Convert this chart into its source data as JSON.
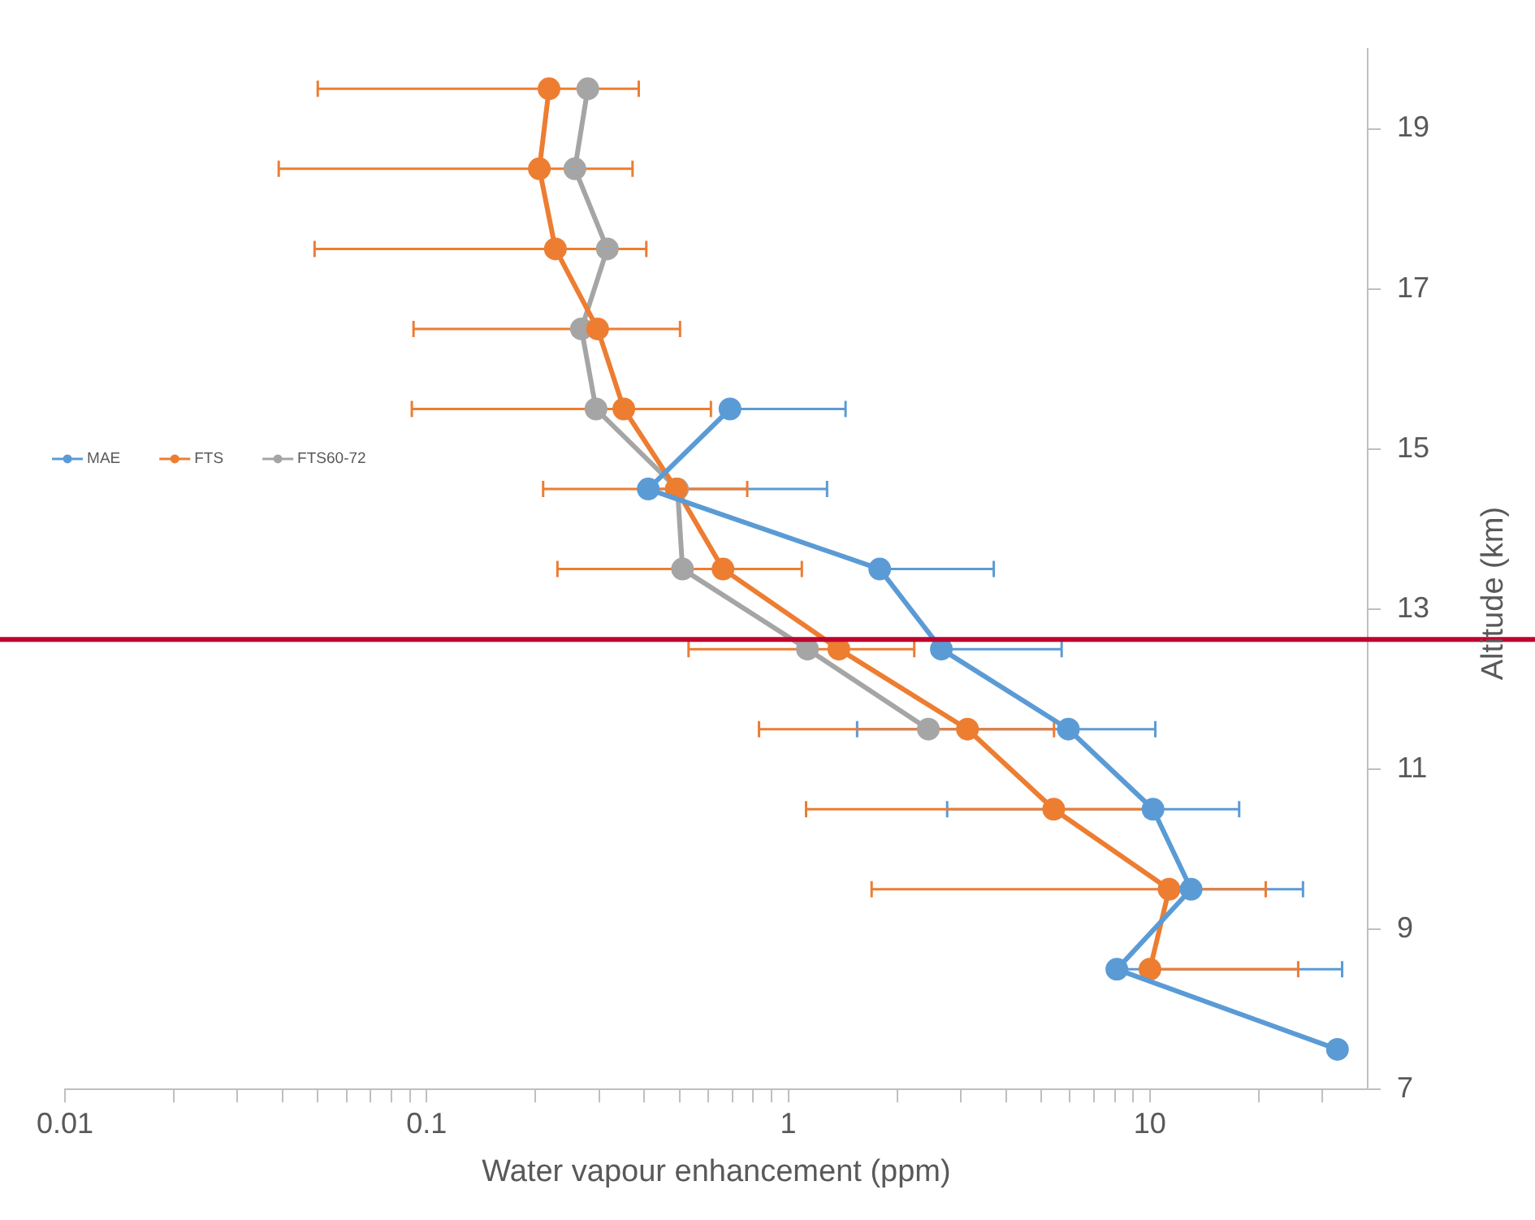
{
  "chart_data": {
    "type": "line",
    "xlabel": "Water vapour enhancement (ppm)",
    "ylabel": "Altitude (km)",
    "log": "x",
    "grid": false,
    "legend": "left",
    "marker": "circle",
    "xlim": [
      0.01,
      40
    ],
    "xticks": [
      0.01,
      {
        "value": 0.02,
        "label": null
      },
      {
        "value": 0.03,
        "label": null
      },
      {
        "value": 0.04,
        "label": null
      },
      {
        "value": 0.05,
        "label": null
      },
      {
        "value": 0.06,
        "label": null
      },
      {
        "value": 0.07,
        "label": null
      },
      {
        "value": 0.08,
        "label": null
      },
      {
        "value": 0.09,
        "label": null
      },
      0.1,
      {
        "value": 0.2,
        "label": null
      },
      {
        "value": 0.3,
        "label": null
      },
      {
        "value": 0.4,
        "label": null
      },
      {
        "value": 0.5,
        "label": null
      },
      {
        "value": 0.6,
        "label": null
      },
      {
        "value": 0.7,
        "label": null
      },
      {
        "value": 0.8,
        "label": null
      },
      {
        "value": 0.9,
        "label": null
      },
      1,
      {
        "value": 2,
        "label": null
      },
      {
        "value": 3,
        "label": null
      },
      {
        "value": 4,
        "label": null
      },
      {
        "value": 5,
        "label": null
      },
      {
        "value": 6,
        "label": null
      },
      {
        "value": 7,
        "label": null
      },
      {
        "value": 8,
        "label": null
      },
      {
        "value": 9,
        "label": null
      },
      10,
      {
        "value": 20,
        "label": null
      },
      {
        "value": 30,
        "label": null
      }
    ],
    "ylim": [
      7,
      20
    ],
    "yticks": [
      7,
      9,
      11,
      13,
      15,
      17,
      19
    ],
    "ref_lines": [
      {
        "axis": "y",
        "value": 12.62,
        "color": "#c0002f"
      }
    ],
    "series": [
      {
        "name": "MAE",
        "color": "#5b9bd5",
        "x": [
          33,
          8.1,
          13.0,
          10.2,
          5.95,
          2.65,
          1.79,
          0.41,
          0.69
        ],
        "values": [
          7.5,
          8.5,
          9.5,
          10.5,
          11.5,
          12.5,
          13.5,
          14.5,
          15.5
        ],
        "xerrors": [
          null,
          [
            8.1,
            34
          ],
          [
            13.0,
            26.5
          ],
          7.45,
          4.4,
          [
            2.65,
            5.7
          ],
          [
            1.79,
            3.7
          ],
          [
            0.41,
            1.28
          ],
          [
            0.69,
            1.44
          ]
        ]
      },
      {
        "name": "FTS",
        "color": "#ed7d31",
        "x": [
          10.0,
          11.3,
          5.42,
          3.13,
          1.38,
          0.66,
          0.49,
          0.351,
          0.297,
          0.227,
          0.205,
          0.218
        ],
        "values": [
          8.5,
          9.5,
          10.5,
          11.5,
          12.5,
          13.5,
          14.5,
          15.5,
          16.5,
          17.5,
          18.5,
          19.5
        ],
        "xerrors": [
          [
            10.0,
            25.7
          ],
          9.6,
          4.3,
          2.3,
          0.85,
          0.43,
          0.28,
          0.26,
          0.205,
          0.178,
          0.166,
          0.168
        ]
      },
      {
        "name": "FTS60-72",
        "color": "#a5a5a5",
        "x": [
          2.44,
          1.13,
          0.51,
          0.494,
          0.294,
          0.268,
          0.316,
          0.257,
          0.279
        ],
        "values": [
          11.5,
          12.5,
          13.5,
          14.5,
          15.5,
          16.5,
          17.5,
          18.5,
          19.5
        ]
      }
    ]
  }
}
